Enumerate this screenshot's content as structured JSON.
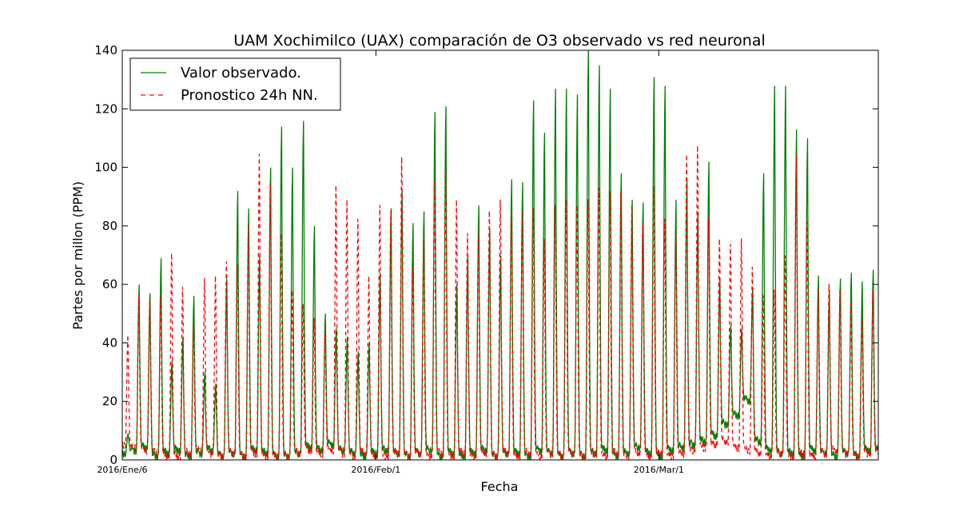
{
  "chart_data": {
    "type": "line",
    "title": "UAM Xochimilco (UAX) comparación de O3 observado vs red neuronal",
    "xlabel": "Fecha",
    "ylabel": "Partes por millon (PPM)",
    "ylim": [
      0,
      140
    ],
    "y_ticks": [
      "0",
      "20",
      "40",
      "60",
      "80",
      "100",
      "120",
      "140"
    ],
    "x_tick_labels": [
      "2016/Ene/6",
      "2016/Feb/1",
      "2016/Mar/1"
    ],
    "x_tick_days": [
      0,
      26,
      55
    ],
    "day_span": 77.5,
    "legend_position": "top-left",
    "series": [
      {
        "name": "Valor observado.",
        "color": "#008000",
        "dash": "solid",
        "daily_peaks": [
          9,
          60,
          57,
          69,
          34,
          42,
          56,
          30,
          26,
          62,
          92,
          86,
          70,
          100,
          114,
          100,
          116,
          80,
          50,
          45,
          42,
          37,
          40,
          64,
          86,
          92,
          81,
          85,
          119,
          121,
          60,
          70,
          87,
          79,
          70,
          96,
          95,
          123,
          112,
          127,
          127,
          125,
          141,
          135,
          127,
          98,
          89,
          88,
          131,
          128,
          89,
          96,
          85,
          102,
          62,
          46,
          45,
          59,
          98,
          128,
          128,
          113,
          110,
          63,
          58,
          62,
          64,
          61,
          65
        ],
        "daily_troughs": [
          2,
          3,
          4,
          1,
          2,
          3,
          1,
          2,
          3,
          1,
          2,
          1,
          3,
          2,
          1,
          1,
          2,
          4,
          3,
          5,
          3,
          2,
          1,
          2,
          3,
          2,
          1,
          2,
          3,
          1,
          2,
          1,
          2,
          3,
          1,
          2,
          2,
          1,
          3,
          2,
          1,
          2,
          1,
          2,
          3,
          1,
          2,
          4,
          2,
          1,
          3,
          4,
          5,
          6,
          8,
          12,
          15,
          20,
          6,
          3,
          2,
          2,
          1,
          3,
          2,
          1,
          2,
          1,
          3
        ]
      },
      {
        "name": "Pronostico 24h NN.",
        "color": "#ff0000",
        "dash": "dashed",
        "daily_peaks": [
          44,
          58,
          57,
          58,
          73,
          61,
          47,
          64,
          65,
          70,
          69,
          83,
          108,
          98,
          80,
          60,
          55,
          50,
          45,
          97,
          92,
          85,
          65,
          90,
          88,
          107,
          68,
          78,
          99,
          102,
          92,
          80,
          80,
          88,
          92,
          86,
          88,
          89,
          78,
          90,
          92,
          90,
          92,
          96,
          95,
          95,
          90,
          83,
          97,
          85,
          80,
          108,
          111,
          85,
          78,
          76,
          78,
          68,
          58,
          60,
          72,
          108,
          84,
          60,
          62,
          60,
          55,
          50,
          60
        ],
        "daily_troughs": [
          5,
          4,
          3,
          2,
          1,
          1,
          2,
          3,
          2,
          1,
          2,
          1,
          2,
          1,
          1,
          1,
          2,
          3,
          2,
          3,
          2,
          1,
          2,
          1,
          1,
          2,
          1,
          2,
          1,
          2,
          1,
          2,
          1,
          2,
          1,
          2,
          1,
          2,
          1,
          2,
          1,
          2,
          1,
          2,
          1,
          2,
          1,
          2,
          1,
          2,
          1,
          2,
          3,
          4,
          5,
          6,
          4,
          3,
          2,
          1,
          2,
          1,
          2,
          1,
          2,
          3,
          2,
          1,
          2
        ]
      }
    ]
  }
}
